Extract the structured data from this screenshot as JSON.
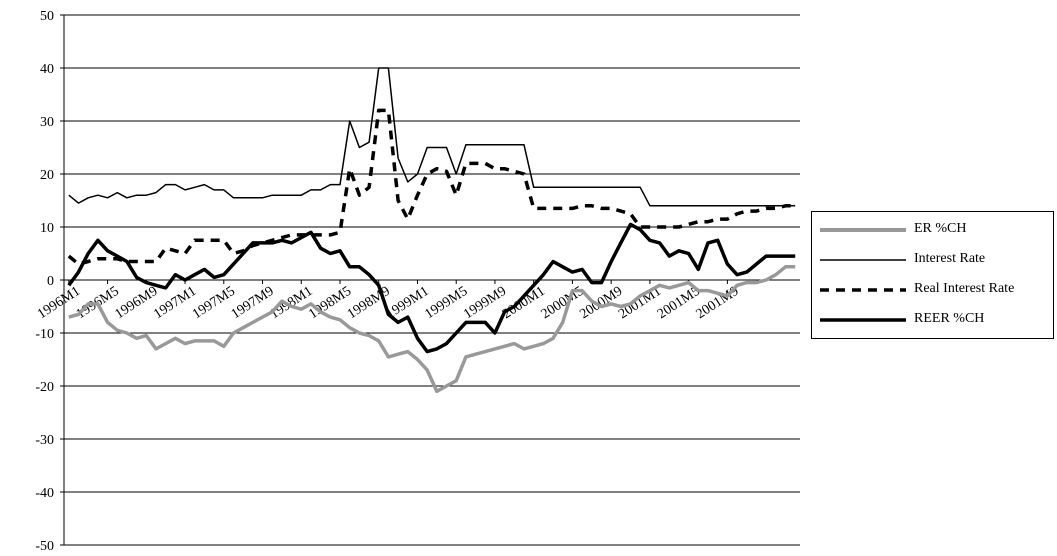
{
  "chart_data": {
    "type": "line",
    "ylim": [
      -50,
      50
    ],
    "yticks": [
      50,
      40,
      30,
      20,
      10,
      0,
      -10,
      -20,
      -30,
      -40,
      -50
    ],
    "xtick_labels": [
      "1996M1",
      "1996M5",
      "1996M9",
      "1997M1",
      "1997M5",
      "1997M9",
      "1998M1",
      "1998M5",
      "1998M9",
      "1999M1",
      "1999M5",
      "1999M9",
      "2000M1",
      "2000M5",
      "2000M9",
      "2001M1",
      "2001M5",
      "2001M9"
    ],
    "grid": "horizontal",
    "legend_position": "right",
    "series": [
      {
        "name": "ER %CH",
        "color": "#999999",
        "style": "thick-solid",
        "values": [
          -7,
          -6.5,
          -4.5,
          -4.5,
          -8,
          -9.5,
          -10,
          -11,
          -10.5,
          -13,
          -12,
          -11,
          -12,
          -11.5,
          -11.5,
          -11.5,
          -12.5,
          -10,
          -9,
          -8,
          -7,
          -6,
          -4,
          -5,
          -5.5,
          -4.5,
          -6,
          -7,
          -7.5,
          -9,
          -10,
          -10.5,
          -11.5,
          -14.5,
          -14,
          -13.5,
          -15,
          -17,
          -21,
          -20,
          -19,
          -14.5,
          -14,
          -13.5,
          -13,
          -12.5,
          -12,
          -13,
          -12.5,
          -12,
          -11,
          -8,
          -2,
          -2,
          -4,
          -5,
          -4.5,
          -5,
          -4.5,
          -3,
          -2,
          -1,
          -1.5,
          -1,
          -0.5,
          -2,
          -2,
          -2.5,
          -3,
          -1,
          -0.5,
          -0.5,
          0,
          1,
          2.5,
          2.5
        ]
      },
      {
        "name": "Interest Rate",
        "color": "#000000",
        "style": "thin-solid",
        "values": [
          16,
          14.5,
          15.5,
          16,
          15.5,
          16.5,
          15.5,
          16,
          16,
          16.5,
          18,
          18,
          17,
          17.5,
          18,
          17,
          17,
          15.5,
          15.5,
          15.5,
          15.5,
          16,
          16,
          16,
          16,
          17,
          17,
          18,
          18,
          30,
          25,
          26,
          40,
          40,
          23,
          18.5,
          20,
          25,
          25,
          25,
          20,
          25.5,
          25.5,
          25.5,
          25.5,
          25.5,
          25.5,
          25.5,
          17.5,
          17.5,
          17.5,
          17.5,
          17.5,
          17.5,
          17.5,
          17.5,
          17.5,
          17.5,
          17.5,
          17.5,
          14,
          14,
          14,
          14,
          14,
          14,
          14,
          14,
          14,
          14,
          14,
          14,
          14,
          14,
          14,
          14
        ]
      },
      {
        "name": "Real Interest Rate",
        "color": "#000000",
        "style": "thick-dashed",
        "values": [
          4.5,
          3,
          3.5,
          4,
          4,
          4,
          3.5,
          3.5,
          3.5,
          3.5,
          6,
          5.5,
          5,
          7.5,
          7.5,
          7.5,
          7.5,
          5,
          5.5,
          6.5,
          7,
          7.5,
          8,
          8.5,
          8.5,
          8.5,
          8.5,
          8.5,
          9,
          21,
          16,
          17.5,
          32,
          32,
          15,
          11.5,
          16,
          20,
          21,
          20.5,
          16,
          22,
          22,
          22,
          21,
          21,
          20.5,
          20,
          13.5,
          13.5,
          13.5,
          13.5,
          13.5,
          14,
          14,
          13.5,
          13.5,
          13,
          12.5,
          10,
          10,
          10,
          10,
          10,
          10.5,
          11,
          11,
          11.5,
          11.5,
          12.5,
          13,
          13,
          13.5,
          13.5,
          14,
          14
        ]
      },
      {
        "name": "REER %CH",
        "color": "#000000",
        "style": "thick-solid",
        "values": [
          -1,
          1.5,
          5,
          7.5,
          5.5,
          4.5,
          3.5,
          0.5,
          -0.5,
          -1,
          -1.5,
          1,
          0,
          1,
          2,
          0.5,
          1,
          3,
          5,
          7,
          7,
          7,
          7.5,
          7,
          8,
          9,
          6,
          5,
          5.5,
          2.5,
          2.5,
          1,
          -1,
          -6.5,
          -8,
          -7,
          -11,
          -13.5,
          -13,
          -12,
          -10,
          -8,
          -8,
          -8,
          -10,
          -6,
          -5,
          -3,
          -1,
          1,
          3.5,
          2.5,
          1.5,
          2,
          -0.5,
          -0.5,
          3.5,
          7,
          10.5,
          9.5,
          7.5,
          7,
          4.5,
          5.5,
          5,
          2,
          7,
          7.5,
          3,
          1,
          1.5,
          3,
          4.5,
          4.5,
          4.5,
          4.5
        ]
      }
    ]
  }
}
